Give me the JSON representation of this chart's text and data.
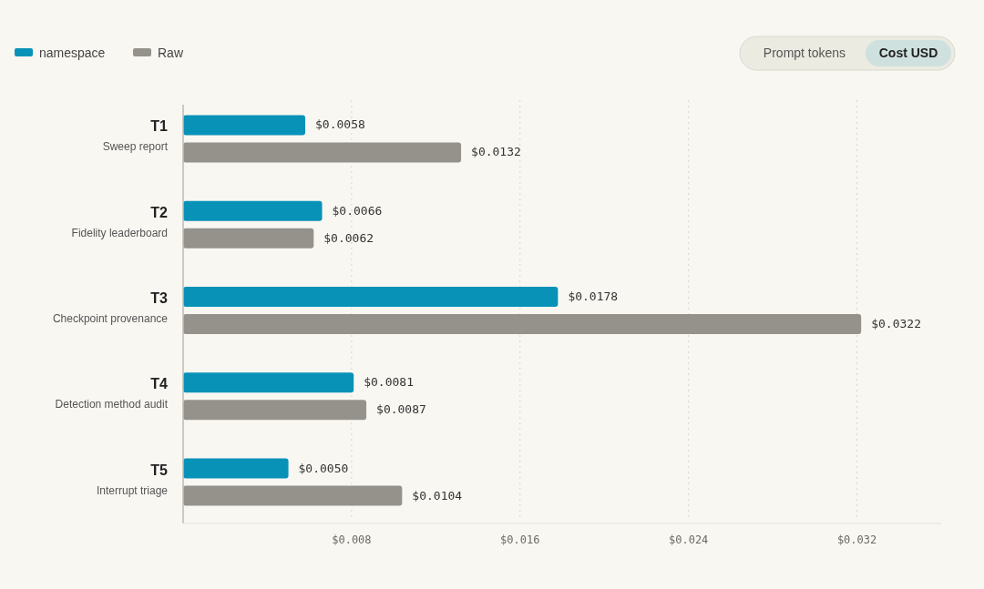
{
  "chart_data": {
    "type": "bar",
    "orientation": "horizontal",
    "categories": [
      "T1\nSweep report",
      "T2\nFidelity leaderboard",
      "T3\nCheckpoint provenance",
      "T4\nDetection method audit",
      "T5\nInterrupt triage"
    ],
    "series": [
      {
        "name": "namespace",
        "color": "#0892b8",
        "values": [
          0.0058,
          0.0066,
          0.0178,
          0.0081,
          0.005
        ],
        "value_labels": [
          "$0.0058",
          "$0.0066",
          "$0.0178",
          "$0.0081",
          "$0.0050"
        ]
      },
      {
        "name": "Raw",
        "color": "#95928b",
        "values": [
          0.0132,
          0.0062,
          0.0322,
          0.0087,
          0.0104
        ],
        "value_labels": [
          "$0.0132",
          "$0.0062",
          "$0.0322",
          "$0.0087",
          "$0.0104"
        ]
      }
    ],
    "xlim": [
      0,
      0.036
    ],
    "xticks": [
      {
        "value": 0.008,
        "label": "$0.008"
      },
      {
        "value": 0.016,
        "label": "$0.016"
      },
      {
        "value": 0.024,
        "label": "$0.024"
      },
      {
        "value": 0.032,
        "label": "$0.032"
      }
    ],
    "grid": "x",
    "legend": "top left",
    "annotations": [
      "Prompt tokens",
      "Cost USD"
    ]
  }
}
